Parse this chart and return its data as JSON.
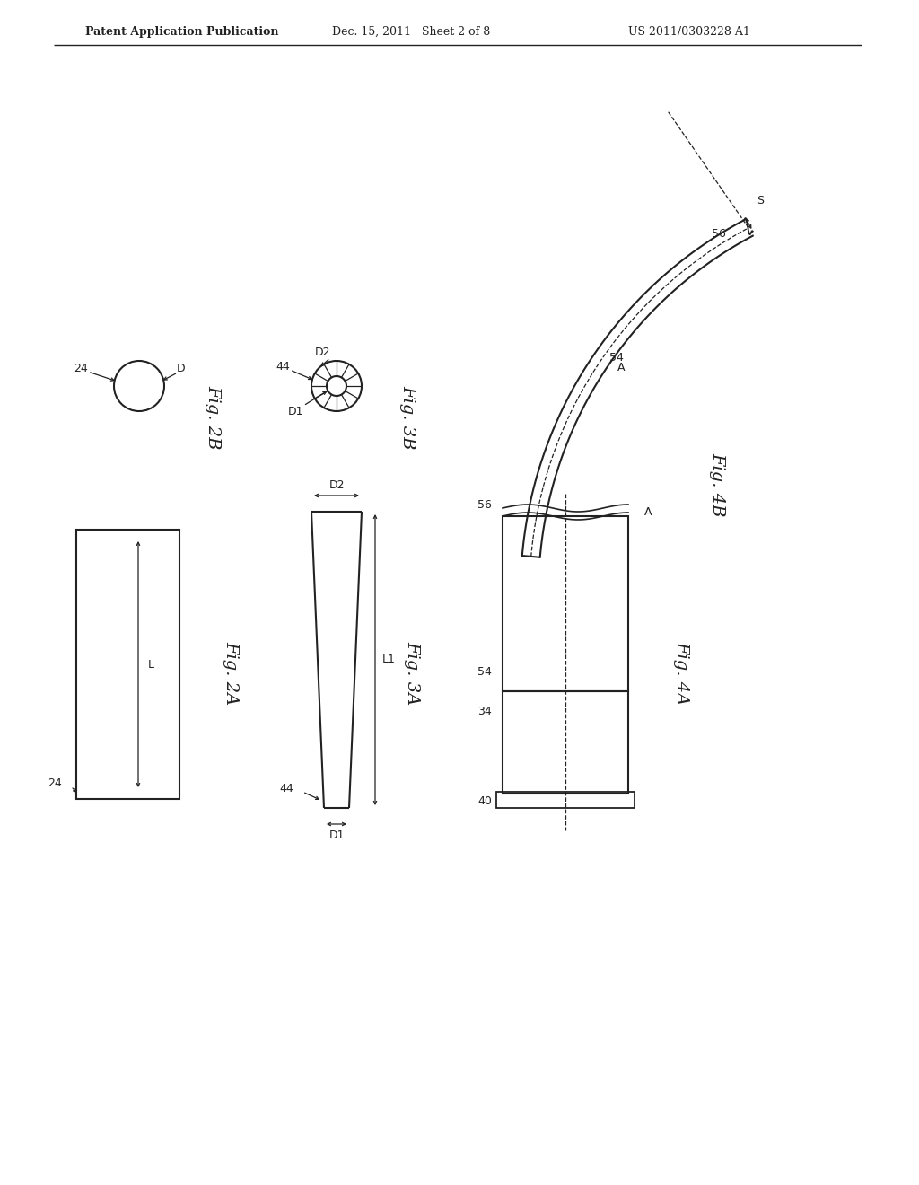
{
  "bg": "#ffffff",
  "lc": "#222222",
  "header_left": "Patent Application Publication",
  "header_mid": "Dec. 15, 2011   Sheet 2 of 8",
  "header_right": "US 2011/0303228 A1",
  "fig_labels": {
    "2A": "Fig. 2A",
    "2B": "Fig. 2B",
    "3A": "Fig. 3A",
    "3B": "Fig. 3B",
    "4A": "Fig. 4A",
    "4B": "Fig. 4B"
  }
}
